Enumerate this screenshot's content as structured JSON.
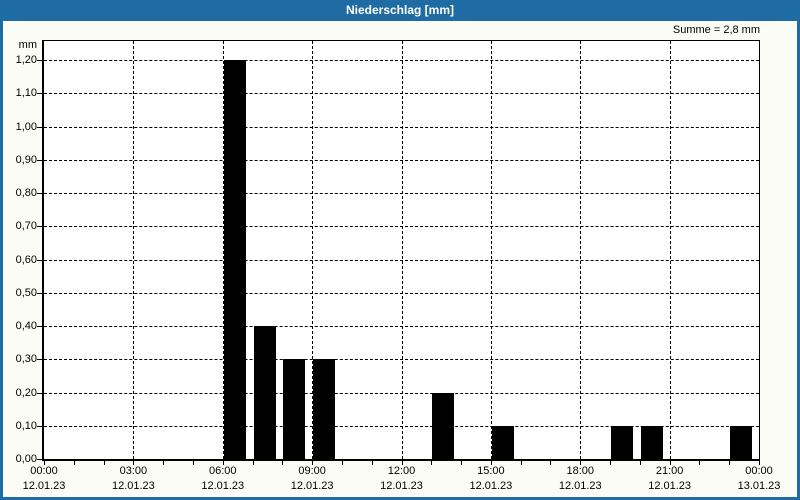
{
  "window": {
    "title": "Niederschlag [mm]"
  },
  "summary_label": "Summe = 2,8 mm",
  "colors": {
    "titlebar": "#1f6ca4",
    "frame": "#1f6ca4",
    "bar": "#000000",
    "grid": "#000000",
    "text": "#000000",
    "plot_background": "#ffffff",
    "page_background": "#fcfcf7",
    "title_text": "#ffffff"
  },
  "chart_data": {
    "type": "bar",
    "title": "Niederschlag [mm]",
    "ylabel": "mm",
    "xlabel": "",
    "summary": "Summe = 2,8 mm",
    "ylim": [
      0,
      1.26
    ],
    "x_range_hours": [
      0,
      24
    ],
    "grid": "dashed",
    "bar_width_hours": 0.75,
    "x_hours": [
      6,
      7,
      8,
      9,
      13,
      15,
      19,
      20,
      23
    ],
    "values": [
      1.2,
      0.4,
      0.3,
      0.3,
      0.2,
      0.1,
      0.1,
      0.1,
      0.1
    ],
    "sum_mm": 2.8,
    "y_ticks": [
      {
        "value": 0.0,
        "label": "0,00"
      },
      {
        "value": 0.1,
        "label": "0,10"
      },
      {
        "value": 0.2,
        "label": "0,20"
      },
      {
        "value": 0.3,
        "label": "0,30"
      },
      {
        "value": 0.4,
        "label": "0,40"
      },
      {
        "value": 0.5,
        "label": "0,50"
      },
      {
        "value": 0.6,
        "label": "0,60"
      },
      {
        "value": 0.7,
        "label": "0,70"
      },
      {
        "value": 0.8,
        "label": "0,80"
      },
      {
        "value": 0.9,
        "label": "0,90"
      },
      {
        "value": 1.0,
        "label": "1,00"
      },
      {
        "value": 1.1,
        "label": "1,10"
      },
      {
        "value": 1.2,
        "label": "1,20"
      }
    ],
    "x_ticks_major": [
      {
        "hour": 0,
        "time": "00:00",
        "date": "12.01.23"
      },
      {
        "hour": 3,
        "time": "03:00",
        "date": "12.01.23"
      },
      {
        "hour": 6,
        "time": "06:00",
        "date": "12.01.23"
      },
      {
        "hour": 9,
        "time": "09:00",
        "date": "12.01.23"
      },
      {
        "hour": 12,
        "time": "12:00",
        "date": "12.01.23"
      },
      {
        "hour": 15,
        "time": "15:00",
        "date": "12.01.23"
      },
      {
        "hour": 18,
        "time": "18:00",
        "date": "12.01.23"
      },
      {
        "hour": 21,
        "time": "21:00",
        "date": "12.01.23"
      },
      {
        "hour": 24,
        "time": "00:00",
        "date": "13.01.23"
      }
    ],
    "x_minor_tick_every_hours": 1
  }
}
